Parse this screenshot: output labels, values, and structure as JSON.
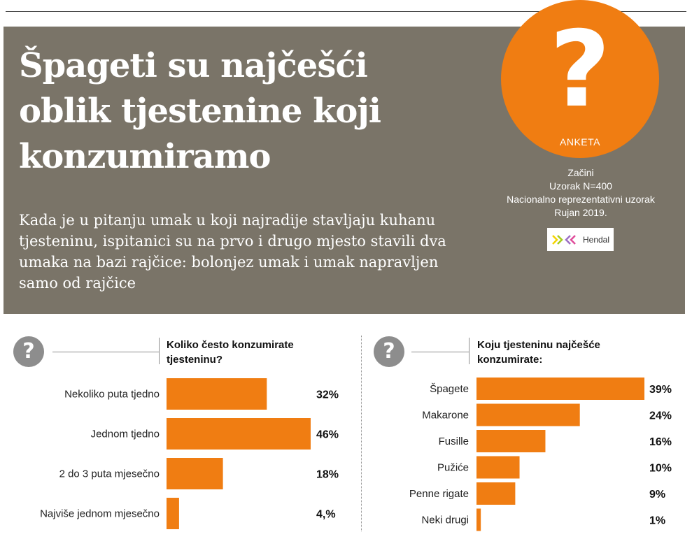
{
  "header": {
    "headline_lines": [
      "Špageti su najčešći",
      "oblik tjestenine koji",
      "konzumiramo"
    ],
    "lead": "Kada je u pitanju umak u koji najradije stavljaju kuhanu tjesteninu, ispitanici su na prvo i drugo mjesto stavili dva umaka na bazi rajčice: bolonjez umak i umak napravljen samo od rajčice",
    "badge": {
      "symbol": "?",
      "label": "ANKETA"
    },
    "survey": [
      "Začini",
      "Uzorak N=400",
      "Nacionalno reprezentativni uzorak",
      "Rujan 2019."
    ],
    "logo": {
      "text": "Hendal",
      "icon": "hendal-logo-icon"
    }
  },
  "colors": {
    "panel": "#7a7468",
    "accent": "#f07d12",
    "grey": "#8d8d8d"
  },
  "chart_data": [
    {
      "type": "bar",
      "orientation": "horizontal",
      "question_icon": "?",
      "title_lines": [
        "Koliko često konzumirate",
        "tjesteninu?"
      ],
      "categories": [
        "Nekoliko puta tjedno",
        "Jednom tjedno",
        "2 do 3 puta mjesečno",
        "Najviše jednom mjesečno"
      ],
      "values": [
        32,
        46,
        18,
        4
      ],
      "value_labels": [
        "32%",
        "46%",
        "18%",
        "4,%"
      ],
      "grid": false
    },
    {
      "type": "bar",
      "orientation": "horizontal",
      "question_icon": "?",
      "title_lines": [
        "Koju tjesteninu najčešće",
        "konzumirate:"
      ],
      "categories": [
        "Špagete",
        "Makarone",
        "Fusille",
        "Pužiće",
        "Penne rigate",
        "Neki drugi"
      ],
      "values": [
        39,
        24,
        16,
        10,
        9,
        1
      ],
      "value_labels": [
        "39%",
        "24%",
        "16%",
        "10%",
        "9%",
        "1%"
      ],
      "grid": false
    }
  ]
}
